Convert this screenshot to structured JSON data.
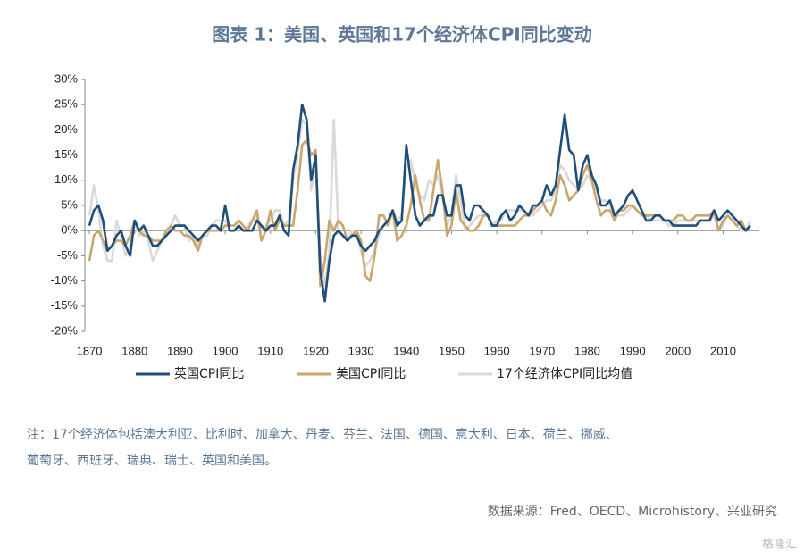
{
  "chart_data": {
    "type": "line",
    "title": "图表 1：美国、英国和17个经济体CPI同比变动",
    "x": [
      1870,
      1871,
      1872,
      1873,
      1874,
      1875,
      1876,
      1877,
      1878,
      1879,
      1880,
      1881,
      1882,
      1883,
      1884,
      1885,
      1886,
      1887,
      1888,
      1889,
      1890,
      1891,
      1892,
      1893,
      1894,
      1895,
      1896,
      1897,
      1898,
      1899,
      1900,
      1901,
      1902,
      1903,
      1904,
      1905,
      1906,
      1907,
      1908,
      1909,
      1910,
      1911,
      1912,
      1913,
      1914,
      1915,
      1916,
      1917,
      1918,
      1919,
      1920,
      1921,
      1922,
      1923,
      1924,
      1925,
      1926,
      1927,
      1928,
      1929,
      1930,
      1931,
      1932,
      1933,
      1934,
      1935,
      1936,
      1937,
      1938,
      1939,
      1940,
      1941,
      1942,
      1943,
      1944,
      1945,
      1946,
      1947,
      1948,
      1949,
      1950,
      1951,
      1952,
      1953,
      1954,
      1955,
      1956,
      1957,
      1958,
      1959,
      1960,
      1961,
      1962,
      1963,
      1964,
      1965,
      1966,
      1967,
      1968,
      1969,
      1970,
      1971,
      1972,
      1973,
      1974,
      1975,
      1976,
      1977,
      1978,
      1979,
      1980,
      1981,
      1982,
      1983,
      1984,
      1985,
      1986,
      1987,
      1988,
      1989,
      1990,
      1991,
      1992,
      1993,
      1994,
      1995,
      1996,
      1997,
      1998,
      1999,
      2000,
      2001,
      2002,
      2003,
      2004,
      2005,
      2006,
      2007,
      2008,
      2009,
      2010,
      2011,
      2012,
      2013,
      2014,
      2015,
      2016
    ],
    "series": [
      {
        "name": "英国CPI同比",
        "color": "#1f4e79",
        "values": [
          1,
          4,
          5,
          2,
          -4,
          -3,
          -1,
          0,
          -3,
          -5,
          2,
          0,
          1,
          -1,
          -3,
          -3,
          -2,
          -1,
          0,
          1,
          1,
          1,
          0,
          -1,
          -2,
          -1,
          0,
          1,
          1,
          0,
          5,
          0,
          0,
          1,
          0,
          0,
          0,
          2,
          1,
          0,
          1,
          1,
          3,
          0,
          -1,
          12,
          17,
          25,
          22,
          10,
          15,
          -8,
          -14,
          -6,
          -1,
          0,
          -1,
          -2,
          -1,
          -1,
          -3,
          -4,
          -3,
          -2,
          0,
          1,
          2,
          4,
          1,
          2,
          17,
          10,
          3,
          1,
          2,
          3,
          3,
          7,
          7,
          3,
          3,
          9,
          9,
          3,
          2,
          5,
          5,
          4,
          3,
          1,
          1,
          3,
          4,
          2,
          3,
          5,
          4,
          3,
          5,
          5,
          6,
          9,
          7,
          9,
          16,
          23,
          16,
          15,
          8,
          13,
          15,
          11,
          9,
          5,
          5,
          6,
          3,
          4,
          5,
          7,
          8,
          6,
          4,
          2,
          2,
          3,
          3,
          2,
          2,
          1,
          1,
          1,
          1,
          1,
          1,
          2,
          2,
          2,
          4,
          2,
          3,
          4,
          3,
          2,
          1,
          0,
          1
        ]
      },
      {
        "name": "美国CPI同比",
        "color": "#c9a66b",
        "values": [
          -6,
          -1,
          0,
          -2,
          -4,
          -3,
          -2,
          -2,
          -3,
          -1,
          2,
          0,
          -1,
          -1,
          -2,
          -2,
          -2,
          0,
          1,
          0,
          0,
          -1,
          -1,
          -2,
          -4,
          -1,
          0,
          0,
          0,
          0,
          1,
          1,
          1,
          2,
          1,
          0,
          2,
          4,
          -2,
          0,
          4,
          0,
          2,
          1,
          1,
          1,
          8,
          17,
          18,
          15,
          16,
          -11,
          -6,
          2,
          0,
          2,
          1,
          -2,
          -1,
          0,
          -2,
          -9,
          -10,
          -5,
          3,
          3,
          1,
          4,
          -2,
          -1,
          1,
          5,
          11,
          6,
          2,
          2,
          8,
          14,
          8,
          -1,
          1,
          8,
          2,
          1,
          0,
          0,
          1,
          3,
          3,
          1,
          1,
          1,
          1,
          1,
          1,
          2,
          3,
          3,
          4,
          5,
          6,
          4,
          3,
          6,
          11,
          9,
          6,
          7,
          8,
          11,
          13,
          10,
          6,
          3,
          4,
          4,
          2,
          4,
          4,
          5,
          5,
          4,
          3,
          3,
          3,
          3,
          3,
          2,
          2,
          2,
          3,
          3,
          2,
          2,
          3,
          3,
          3,
          3,
          4,
          0,
          2,
          3,
          2,
          1,
          2,
          0,
          1
        ]
      },
      {
        "name": "17个经济体CPI同比均值",
        "color": "#d9d9d9",
        "values": [
          3,
          9,
          4,
          -3,
          -6,
          -6,
          2,
          -1,
          -5,
          -3,
          2,
          -1,
          0,
          -2,
          -6,
          -4,
          -2,
          -1,
          1,
          3,
          1,
          1,
          -2,
          -1,
          -3,
          -1,
          -1,
          1,
          2,
          2,
          2,
          0,
          0,
          1,
          0,
          1,
          2,
          3,
          0,
          1,
          2,
          4,
          4,
          1,
          2,
          10,
          15,
          22,
          21,
          8,
          14,
          -5,
          -11,
          -4,
          22,
          0,
          -1,
          -2,
          0,
          0,
          -4,
          -7,
          -6,
          -4,
          -1,
          1,
          2,
          4,
          2,
          3,
          13,
          14,
          9,
          7,
          6,
          10,
          9,
          11,
          7,
          1,
          3,
          11,
          6,
          0,
          1,
          2,
          3,
          3,
          3,
          1,
          2,
          2,
          4,
          4,
          4,
          4,
          4,
          3,
          3,
          4,
          5,
          6,
          6,
          8,
          13,
          12,
          10,
          9,
          8,
          9,
          11,
          10,
          8,
          6,
          6,
          5,
          3,
          3,
          3,
          4,
          5,
          4,
          3,
          3,
          2,
          2,
          2,
          2,
          1,
          1,
          2,
          2,
          2,
          2,
          2,
          2,
          2,
          2,
          3,
          0,
          1,
          3,
          2,
          1,
          0,
          0,
          2
        ]
      }
    ],
    "xlim": [
      1869,
      2018
    ],
    "xticks": [
      1870,
      1880,
      1890,
      1900,
      1910,
      1920,
      1930,
      1940,
      1950,
      1960,
      1970,
      1980,
      1990,
      2000,
      2010
    ],
    "ylim": [
      -20,
      30
    ],
    "yticks": [
      {
        "value": 30,
        "label": "30%"
      },
      {
        "value": 25,
        "label": "25%"
      },
      {
        "value": 20,
        "label": "20%"
      },
      {
        "value": 15,
        "label": "15%"
      },
      {
        "value": 10,
        "label": "10%"
      },
      {
        "value": 5,
        "label": "5%"
      },
      {
        "value": 0,
        "label": "0%"
      },
      {
        "value": -5,
        "label": "-5%"
      },
      {
        "value": -10,
        "label": "-10%"
      },
      {
        "value": -15,
        "label": "-15%"
      },
      {
        "value": -20,
        "label": "-20%"
      }
    ],
    "grid": false,
    "legend": "bottom",
    "note": [
      "注：17个经济体包括澳大利亚、比利时、加拿大、丹麦、芬兰、法国、德国、意大利、日本、荷兰、挪威、",
      "葡萄牙、西班牙、瑞典、瑞士、英国和美国。"
    ],
    "source": "数据来源：Fred、OECD、Microhistory、兴业研究",
    "watermark": "格隆汇"
  }
}
